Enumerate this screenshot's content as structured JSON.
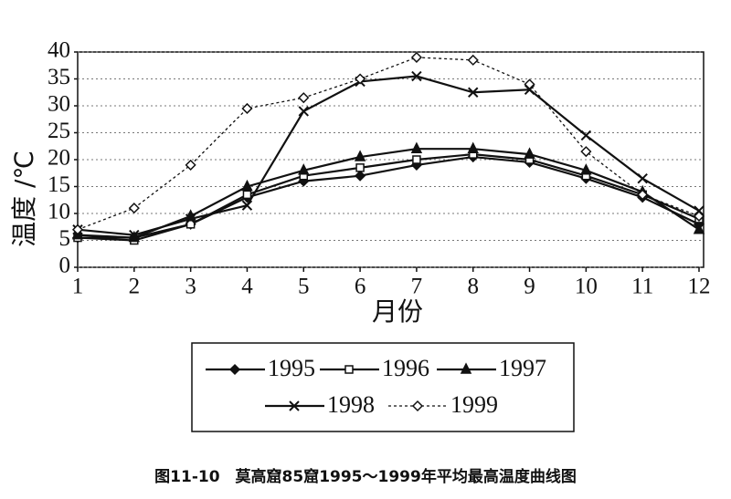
{
  "chart_data": {
    "type": "line",
    "y_label": "温度 /℃",
    "x_label": "月份",
    "caption": "图11-10　莫高窟85窟1995～1999年平均最高温度曲线图",
    "x": [
      1,
      2,
      3,
      4,
      5,
      6,
      7,
      8,
      9,
      10,
      11,
      12
    ],
    "xlim": [
      1,
      12
    ],
    "xticks": [
      1,
      2,
      3,
      4,
      5,
      6,
      7,
      8,
      9,
      10,
      11,
      12
    ],
    "ylim": [
      0,
      40
    ],
    "yticks": [
      0,
      5,
      10,
      15,
      20,
      25,
      30,
      35,
      40
    ],
    "grid": true,
    "series": [
      {
        "name": "1995",
        "color": "#111111",
        "marker": "diamond-filled",
        "dash": "solid",
        "values": [
          5.5,
          5.5,
          8,
          13,
          16,
          17,
          19,
          20.5,
          19.5,
          16.5,
          13,
          8
        ]
      },
      {
        "name": "1996",
        "color": "#111111",
        "marker": "square-open",
        "dash": "solid",
        "values": [
          5.5,
          5,
          8,
          13.5,
          17,
          18.5,
          20,
          21,
          20,
          17,
          13.5,
          9
        ]
      },
      {
        "name": "1997",
        "color": "#111111",
        "marker": "triangle-filled",
        "dash": "solid",
        "values": [
          6,
          5.5,
          9.5,
          15,
          18,
          20.5,
          22,
          22,
          21,
          18,
          14,
          7
        ]
      },
      {
        "name": "1998",
        "color": "#111111",
        "marker": "x",
        "dash": "solid",
        "values": [
          7,
          6,
          9,
          11.5,
          29,
          34.5,
          35.5,
          32.5,
          33,
          24.5,
          16.5,
          10.5
        ]
      },
      {
        "name": "1999",
        "color": "#111111",
        "marker": "diamond-open",
        "dash": "dotted",
        "values": [
          7,
          11,
          19,
          29.5,
          31.5,
          35,
          39,
          38.5,
          34,
          21.5,
          13.5,
          9.5
        ]
      }
    ]
  }
}
